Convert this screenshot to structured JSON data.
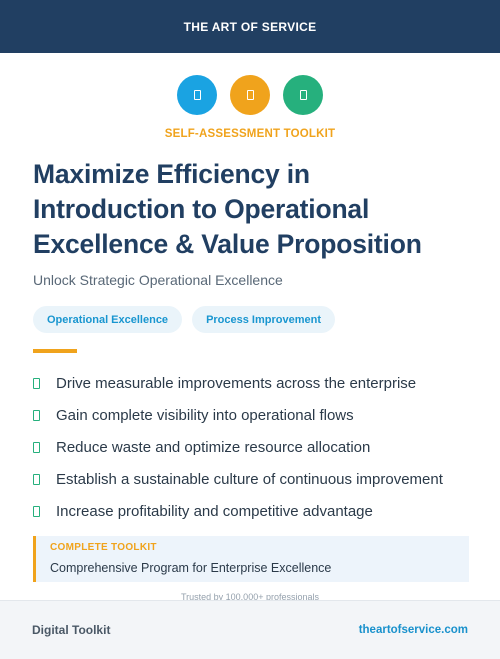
{
  "colors": {
    "header_bg": "#213f62",
    "accent_orange": "#f0a31c",
    "accent_blue": "#1aa3e2",
    "accent_green": "#26b07d",
    "tag_bg": "#eaf4fa",
    "tag_text": "#1996d0",
    "callout_bg": "#edf4fb",
    "link": "#1991cc"
  },
  "header": {
    "title": "THE ART OF SERVICE"
  },
  "icons": [
    {
      "name": "blue-document-icon",
      "color": "#1aa3e2"
    },
    {
      "name": "orange-document-icon",
      "color": "#f0a31c"
    },
    {
      "name": "green-document-icon",
      "color": "#26b07d"
    }
  ],
  "kicker": "SELF-ASSESSMENT TOOLKIT",
  "title_lines": [
    "Maximize Efficiency in",
    "Introduction to Operational",
    "Excellence & Value Proposition"
  ],
  "subtitle": "Unlock Strategic Operational Excellence",
  "tags": [
    "Operational Excellence",
    "Process Improvement"
  ],
  "bullets": [
    "Drive measurable improvements across the enterprise",
    "Gain complete visibility into operational flows",
    "Reduce waste and optimize resource allocation",
    "Establish a sustainable culture of continuous improvement",
    "Increase profitability and competitive advantage"
  ],
  "callout": {
    "label": "COMPLETE TOOLKIT",
    "text": "Comprehensive Program for Enterprise Excellence"
  },
  "trusted": "Trusted by 100,000+ professionals",
  "footer": {
    "left": "Digital Toolkit",
    "right": "theartofservice.com"
  }
}
